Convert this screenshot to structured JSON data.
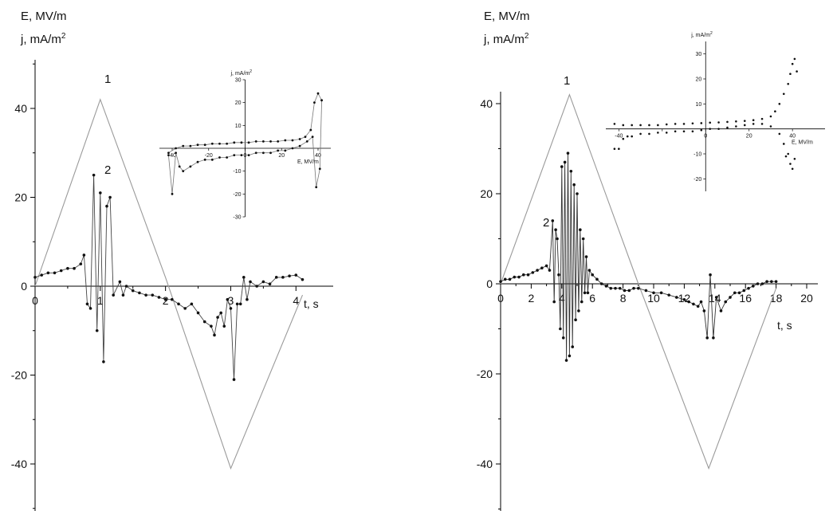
{
  "chart_data": [
    {
      "type": "line",
      "axis_labels": {
        "y1": "E, MV/m",
        "y2": "j, mA/m",
        "y2_sup": "2",
        "x": "t, s"
      },
      "xlim": [
        0,
        4.4
      ],
      "ylim": [
        -50,
        50
      ],
      "x_ticks": [
        0,
        1,
        2,
        3,
        4
      ],
      "y_ticks": [
        -40,
        -20,
        0,
        20,
        40
      ],
      "series": [
        {
          "name": "1",
          "style": "line",
          "color": "#9a9a9a",
          "x": [
            0.0,
            1.0,
            2.0,
            3.0,
            4.1
          ],
          "y": [
            0,
            42,
            2,
            -41,
            -2
          ]
        },
        {
          "name": "2",
          "style": "line-markers",
          "color": "#444444",
          "x": [
            0.0,
            0.1,
            0.2,
            0.3,
            0.4,
            0.5,
            0.6,
            0.7,
            0.75,
            0.8,
            0.85,
            0.9,
            0.95,
            1.0,
            1.05,
            1.1,
            1.15,
            1.2,
            1.3,
            1.35,
            1.4,
            1.5,
            1.6,
            1.7,
            1.8,
            1.9,
            2.0,
            2.1,
            2.2,
            2.3,
            2.4,
            2.5,
            2.6,
            2.7,
            2.75,
            2.8,
            2.85,
            2.9,
            2.95,
            3.0,
            3.05,
            3.1,
            3.15,
            3.2,
            3.25,
            3.3,
            3.4,
            3.5,
            3.6,
            3.7,
            3.8,
            3.9,
            4.0,
            4.1
          ],
          "y": [
            2,
            2.5,
            3,
            3,
            3.5,
            4,
            4,
            5,
            7,
            -4,
            -5,
            25,
            -10,
            21,
            -17,
            18,
            20,
            -2,
            1,
            -2,
            0,
            -1,
            -1.5,
            -2,
            -2,
            -2.5,
            -3,
            -3,
            -4,
            -5,
            -4,
            -6,
            -8,
            -9,
            -11,
            -7,
            -6,
            -9,
            -3,
            -5,
            -21,
            -4,
            -4,
            2,
            -3,
            1,
            0,
            1,
            0.5,
            2,
            2,
            2.3,
            2.5,
            1.5
          ]
        }
      ],
      "annotations": [
        "1",
        "2"
      ],
      "inset": {
        "axis_labels": {
          "x": "E, MV/m",
          "y": "j, mA/m",
          "y_sup": "2"
        },
        "xlim": [
          -47,
          47
        ],
        "ylim": [
          -30,
          30
        ],
        "x_ticks": [
          -40,
          -20,
          0,
          20,
          40
        ],
        "x_tick_labels": [
          "-40",
          "-20",
          "0",
          "20",
          "40"
        ],
        "y_ticks": [
          -30,
          -20,
          -10,
          10,
          20,
          30
        ],
        "upper_branch": {
          "x": [
            -42,
            -38,
            -34,
            -30,
            -26,
            -22,
            -18,
            -14,
            -10,
            -6,
            -2,
            2,
            6,
            10,
            14,
            18,
            22,
            26,
            30,
            33,
            36,
            38,
            40,
            42
          ],
          "y": [
            -2,
            0,
            1,
            1,
            1.5,
            1.5,
            2,
            2,
            2,
            2.5,
            2.5,
            2.5,
            3,
            3,
            3,
            3,
            3.5,
            3.5,
            4,
            5,
            8,
            20,
            24,
            21
          ]
        },
        "lower_branch": {
          "x": [
            -42,
            -40,
            -38,
            -36,
            -34,
            -30,
            -26,
            -22,
            -18,
            -14,
            -10,
            -6,
            -2,
            2,
            6,
            10,
            14,
            18,
            22,
            26,
            30,
            34,
            37,
            39,
            41,
            42
          ],
          "y": [
            -3,
            -20,
            -2,
            -8,
            -10,
            -8,
            -6,
            -5,
            -5,
            -4,
            -4,
            -3,
            -3,
            -3,
            -2,
            -2,
            -2,
            -1,
            -1,
            0,
            1,
            3,
            5,
            -17,
            -9,
            21
          ]
        }
      }
    },
    {
      "type": "line",
      "axis_labels": {
        "y1": "E, MV/m",
        "y2": "j, mA/m",
        "y2_sup": "2",
        "x": "t, s"
      },
      "xlim": [
        0,
        20
      ],
      "ylim": [
        -50,
        50
      ],
      "x_ticks": [
        0,
        2,
        4,
        6,
        8,
        10,
        12,
        14,
        16,
        18,
        20
      ],
      "y_ticks": [
        -40,
        -20,
        0,
        20,
        40
      ],
      "series": [
        {
          "name": "1",
          "style": "line",
          "color": "#9a9a9a",
          "x": [
            0,
            4.5,
            9,
            13.6,
            18
          ],
          "y": [
            0,
            42,
            0,
            -41,
            -1
          ]
        },
        {
          "name": "2",
          "style": "line-markers",
          "color": "#333333",
          "x": [
            0.0,
            0.3,
            0.6,
            0.9,
            1.2,
            1.5,
            1.8,
            2.1,
            2.4,
            2.7,
            3.0,
            3.2,
            3.4,
            3.5,
            3.6,
            3.7,
            3.8,
            3.9,
            4.0,
            4.1,
            4.2,
            4.3,
            4.4,
            4.5,
            4.6,
            4.7,
            4.8,
            4.9,
            5.0,
            5.1,
            5.2,
            5.3,
            5.4,
            5.5,
            5.6,
            5.7,
            5.8,
            6.0,
            6.3,
            6.6,
            6.9,
            7.2,
            7.5,
            7.8,
            8.1,
            8.4,
            8.7,
            9.0,
            9.5,
            10.0,
            10.5,
            11.0,
            11.5,
            12.0,
            12.3,
            12.6,
            12.9,
            13.1,
            13.3,
            13.5,
            13.7,
            13.9,
            14.1,
            14.4,
            14.7,
            15.0,
            15.3,
            15.6,
            15.9,
            16.2,
            16.5,
            16.8,
            17.1,
            17.4,
            17.7,
            18.0
          ],
          "y": [
            0.5,
            1,
            1,
            1.5,
            1.5,
            2,
            2,
            2.5,
            3,
            3.5,
            4,
            3,
            14,
            -4,
            12,
            10,
            2,
            -10,
            26,
            -12,
            27,
            -17,
            29,
            -16,
            25,
            -14,
            22,
            -8,
            20,
            -6,
            12,
            -4,
            10,
            -2,
            6,
            -2,
            3,
            2,
            1,
            0,
            -0.5,
            -1,
            -1,
            -1,
            -1.5,
            -1.5,
            -1,
            -1,
            -1.5,
            -2,
            -2,
            -2.5,
            -3,
            -3.5,
            -4,
            -4.5,
            -5,
            -4,
            -6,
            -12,
            2,
            -12,
            -3,
            -6,
            -4,
            -3,
            -2,
            -2,
            -1.5,
            -1,
            -0.5,
            0,
            0,
            0.5,
            0.5,
            0.5
          ]
        }
      ],
      "annotations": [
        "1",
        "2"
      ],
      "inset": {
        "axis_labels": {
          "x": "E, MV/m",
          "y": "j, mA/m",
          "y_sup": "2"
        },
        "xlim": [
          -46,
          55
        ],
        "ylim": [
          -25,
          35
        ],
        "x_ticks": [
          -40,
          -20,
          0,
          20,
          40
        ],
        "x_tick_labels": [
          "-40",
          "",
          "0",
          "20",
          "40"
        ],
        "y_ticks": [
          -20,
          -10,
          10,
          20,
          30
        ],
        "upper_branch": {
          "x": [
            -42,
            -38,
            -34,
            -30,
            -26,
            -22,
            -18,
            -14,
            -10,
            -6,
            -2,
            2,
            6,
            10,
            14,
            18,
            22,
            26,
            30,
            32,
            34,
            36,
            38,
            39,
            40,
            41,
            42
          ],
          "y": [
            2,
            1.5,
            1.5,
            1.5,
            1.5,
            1.5,
            1.8,
            2,
            2,
            2.2,
            2.3,
            2.5,
            2.6,
            2.8,
            3,
            3.2,
            3.5,
            4,
            5,
            7,
            10,
            14,
            18,
            22,
            26,
            28,
            23
          ]
        },
        "lower_branch": {
          "x": [
            -42,
            -40,
            -38,
            -36,
            -34,
            -30,
            -26,
            -22,
            -18,
            -14,
            -10,
            -6,
            -2,
            2,
            6,
            10,
            14,
            18,
            22,
            26,
            30,
            34,
            36,
            37,
            38,
            39,
            40,
            41
          ],
          "y": [
            -8,
            -8,
            -4,
            -3,
            -3,
            -2,
            -2,
            -1.5,
            -1.5,
            -1,
            -1,
            -1,
            -0.5,
            0,
            0,
            0.5,
            1,
            1.5,
            2,
            2,
            1,
            -2,
            -6,
            -11,
            -10,
            -14,
            -16,
            -12
          ]
        }
      }
    }
  ]
}
